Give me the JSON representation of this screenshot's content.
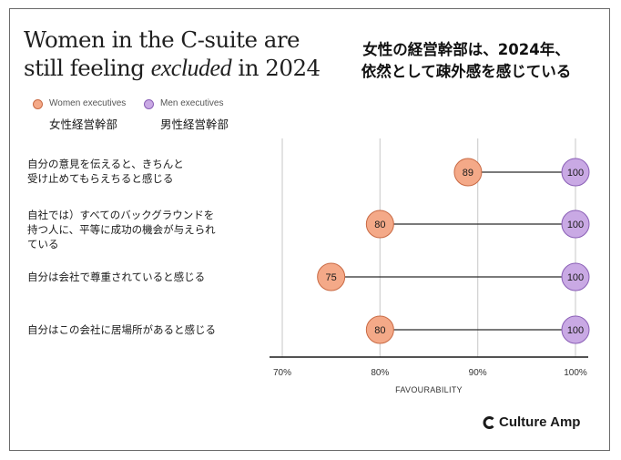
{
  "title": {
    "en_line1": "Women in the C-suite are",
    "en_line2_pre": "still feeling ",
    "en_line2_em": "excluded",
    "en_line2_post": " in 2024",
    "ja_line1": "女性の経営幹部は、2024年、",
    "ja_line2": "依然として疎外感を感じている"
  },
  "legend": {
    "women": {
      "label": "Women executives",
      "label_ja": "女性経営幹部",
      "color": "#f4a988",
      "stroke": "#c96a44"
    },
    "men": {
      "label": "Men executives",
      "label_ja": "男性経営幹部",
      "color": "#c9a9e4",
      "stroke": "#8a5fb6"
    }
  },
  "chart_data": {
    "type": "dumbbell",
    "xlabel": "FAVOURABILITY",
    "xlim": [
      70,
      100
    ],
    "x_ticks": [
      "70%",
      "80%",
      "90%",
      "100%"
    ],
    "x_tick_values": [
      70,
      80,
      90,
      100
    ],
    "series": [
      {
        "name": "Women executives",
        "values": [
          89,
          80,
          75,
          80
        ]
      },
      {
        "name": "Men executives",
        "values": [
          100,
          100,
          100,
          100
        ]
      }
    ],
    "categories": [
      [
        "自分の意見を伝えると、きちんと",
        "受け止めてもらえちると感じる"
      ],
      [
        "自社では）すべてのバックグラウンドを",
        "持つ人に、平等に成功の機会が与えられ",
        "ている"
      ],
      [
        "自分は会社で尊重されていると感じる"
      ],
      [
        "自分はこの会社に居場所があると感じる"
      ]
    ],
    "grid": true
  },
  "brand": {
    "name": "Culture Amp"
  }
}
